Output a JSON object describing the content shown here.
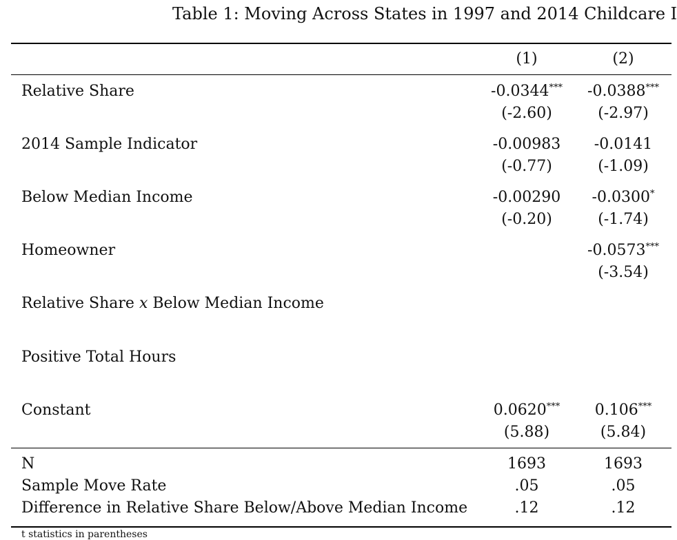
{
  "title": "Table 1: Moving Across States in 1997 and 2014 Childcare I",
  "columns": [
    "(1)",
    "(2)"
  ],
  "rows": [
    {
      "label": "Relative Share",
      "c1": {
        "coef": "-0.0344",
        "stars": "***",
        "t": "(-2.60)"
      },
      "c2": {
        "coef": "-0.0388",
        "stars": "***",
        "t": "(-2.97)"
      }
    },
    {
      "label": "2014 Sample Indicator",
      "c1": {
        "coef": "-0.00983",
        "stars": "",
        "t": "(-0.77)"
      },
      "c2": {
        "coef": "-0.0141",
        "stars": "",
        "t": "(-1.09)"
      }
    },
    {
      "label": "Below Median Income",
      "c1": {
        "coef": "-0.00290",
        "stars": "",
        "t": "(-0.20)"
      },
      "c2": {
        "coef": "-0.0300",
        "stars": "*",
        "t": "(-1.74)"
      }
    },
    {
      "label": "Homeowner",
      "c1": {
        "coef": "",
        "stars": "",
        "t": ""
      },
      "c2": {
        "coef": "-0.0573",
        "stars": "***",
        "t": "(-3.54)"
      }
    },
    {
      "label_pre": "Relative Share ",
      "label_var": "x",
      "label_post": " Below Median Income",
      "c1": {
        "coef": "",
        "stars": "",
        "t": ""
      },
      "c2": {
        "coef": "",
        "stars": "",
        "t": ""
      }
    },
    {
      "label": "Positive Total Hours",
      "c1": {
        "coef": "",
        "stars": "",
        "t": ""
      },
      "c2": {
        "coef": "",
        "stars": "",
        "t": ""
      }
    },
    {
      "label": "Constant",
      "c1": {
        "coef": "0.0620",
        "stars": "***",
        "t": "(5.88)"
      },
      "c2": {
        "coef": "0.106",
        "stars": "***",
        "t": "(5.84)"
      }
    }
  ],
  "stats": [
    {
      "label": "N",
      "c1": "1693",
      "c2": "1693"
    },
    {
      "label": "Sample Move Rate",
      "c1": ".05",
      "c2": ".05"
    },
    {
      "label": "Difference in Relative Share Below/Above Median Income",
      "c1": ".12",
      "c2": ".12"
    }
  ],
  "note": "t statistics in parentheses"
}
